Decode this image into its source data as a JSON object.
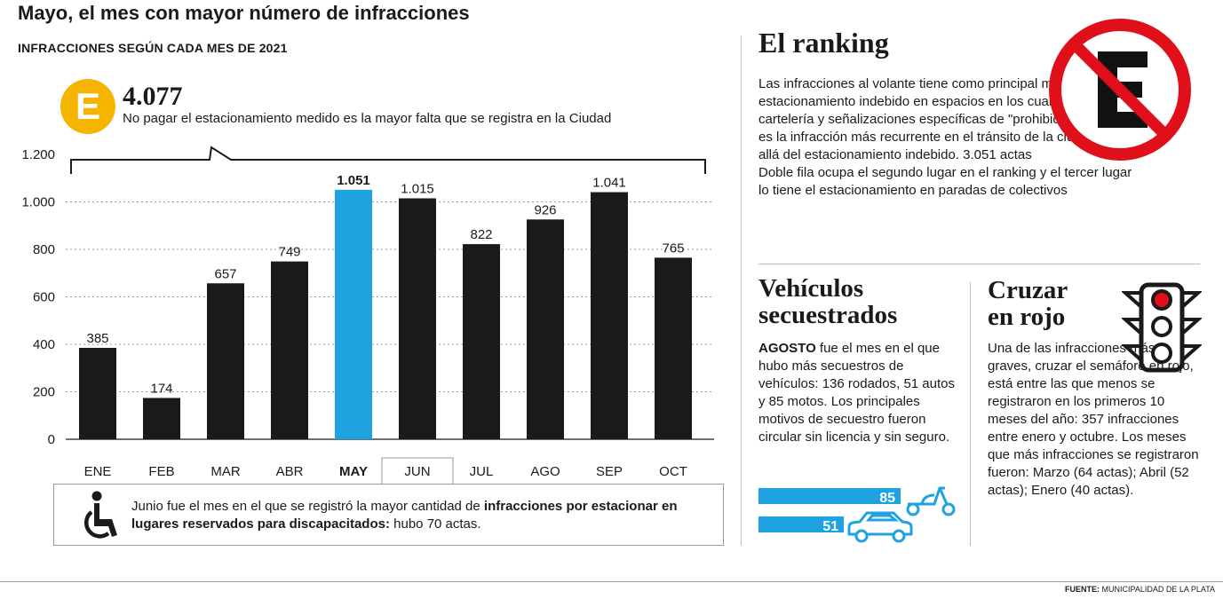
{
  "header": {
    "title": "Mayo, el mes con mayor número de infracciones",
    "subtitle": "INFRACCIONES SEGÚN CADA MES DE 2021"
  },
  "highlight": {
    "icon_letter": "E",
    "value": "4.077",
    "description": "No pagar el estacionamiento medido es la mayor falta que se registra en la Ciudad"
  },
  "chart_data": {
    "type": "bar",
    "title": "",
    "xlabel": "",
    "ylabel": "",
    "categories": [
      "ENE",
      "FEB",
      "MAR",
      "ABR",
      "MAY",
      "JUN",
      "JUL",
      "AGO",
      "SEP",
      "OCT"
    ],
    "values": [
      385,
      174,
      657,
      749,
      1051,
      1015,
      822,
      926,
      1041,
      765
    ],
    "value_labels": [
      "385",
      "174",
      "657",
      "749",
      "1.051",
      "1.015",
      "822",
      "926",
      "1.041",
      "765"
    ],
    "ylim": [
      0,
      1200
    ],
    "yticks": [
      0,
      200,
      400,
      600,
      800,
      1000,
      1200
    ],
    "ytick_labels": [
      "0",
      "200",
      "400",
      "600",
      "800",
      "1.000",
      "1.200"
    ],
    "highlight_category": "MAY",
    "boxed_category": "JUN",
    "grid": "horizontal-dotted",
    "colors": {
      "bar": "#1a1a1a",
      "highlight": "#1fa3e0"
    }
  },
  "note": {
    "icon": "wheelchair-icon",
    "text_before": "Junio fue el mes en el que se registró la mayor cantidad de ",
    "text_bold": "infracciones por estacionar en lugares reservados para discapacitados:",
    "text_after": " hubo 70 actas."
  },
  "ranking": {
    "title": "El ranking",
    "icon": "no-parking-icon",
    "paragraphs": [
      "Las infracciones al volante tiene como principal motivo el estacionamiento indebido en espacios en los cuales hay cartelería y señalizaciones específicas de \"prohibido estacionar\" es la infracción más recurrente en el tránsito de la ciudad, más allá del estacionamiento indebido. 3.051 actas",
      "Doble fila ocupa el segundo lugar en el ranking y el tercer lugar lo tiene el estacionamiento en paradas de colectivos"
    ]
  },
  "vehiculos": {
    "title_line1": "Vehículos",
    "title_line2": "secuestrados",
    "lead_bold": "AGOSTO",
    "text": " fue el mes en el que hubo más secuestros de vehículos: 136 rodados, 51 autos y 85 motos. Los principales motivos de secuestro fueron circular sin licencia y sin seguro.",
    "bars": [
      {
        "label": "85",
        "value": 85,
        "icon": "scooter-icon"
      },
      {
        "label": "51",
        "value": 51,
        "icon": "car-icon"
      }
    ],
    "bar_color": "#1fa3e0"
  },
  "rojo": {
    "title_line1": "Cruzar",
    "title_line2": "en rojo",
    "icon": "traffic-light-icon",
    "text": "Una de las infracciones más graves, cruzar el semáforo en rojo, está entre las que menos se registraron en los primeros 10 meses del año: 357 infracciones entre enero y octubre. Los meses que más infracciones se registraron fueron: Marzo (64 actas); Abril (52 actas); Enero (40 actas)."
  },
  "footer": {
    "source_label": "FUENTE:",
    "source_text": " MUNICIPALIDAD DE LA PLATA"
  }
}
